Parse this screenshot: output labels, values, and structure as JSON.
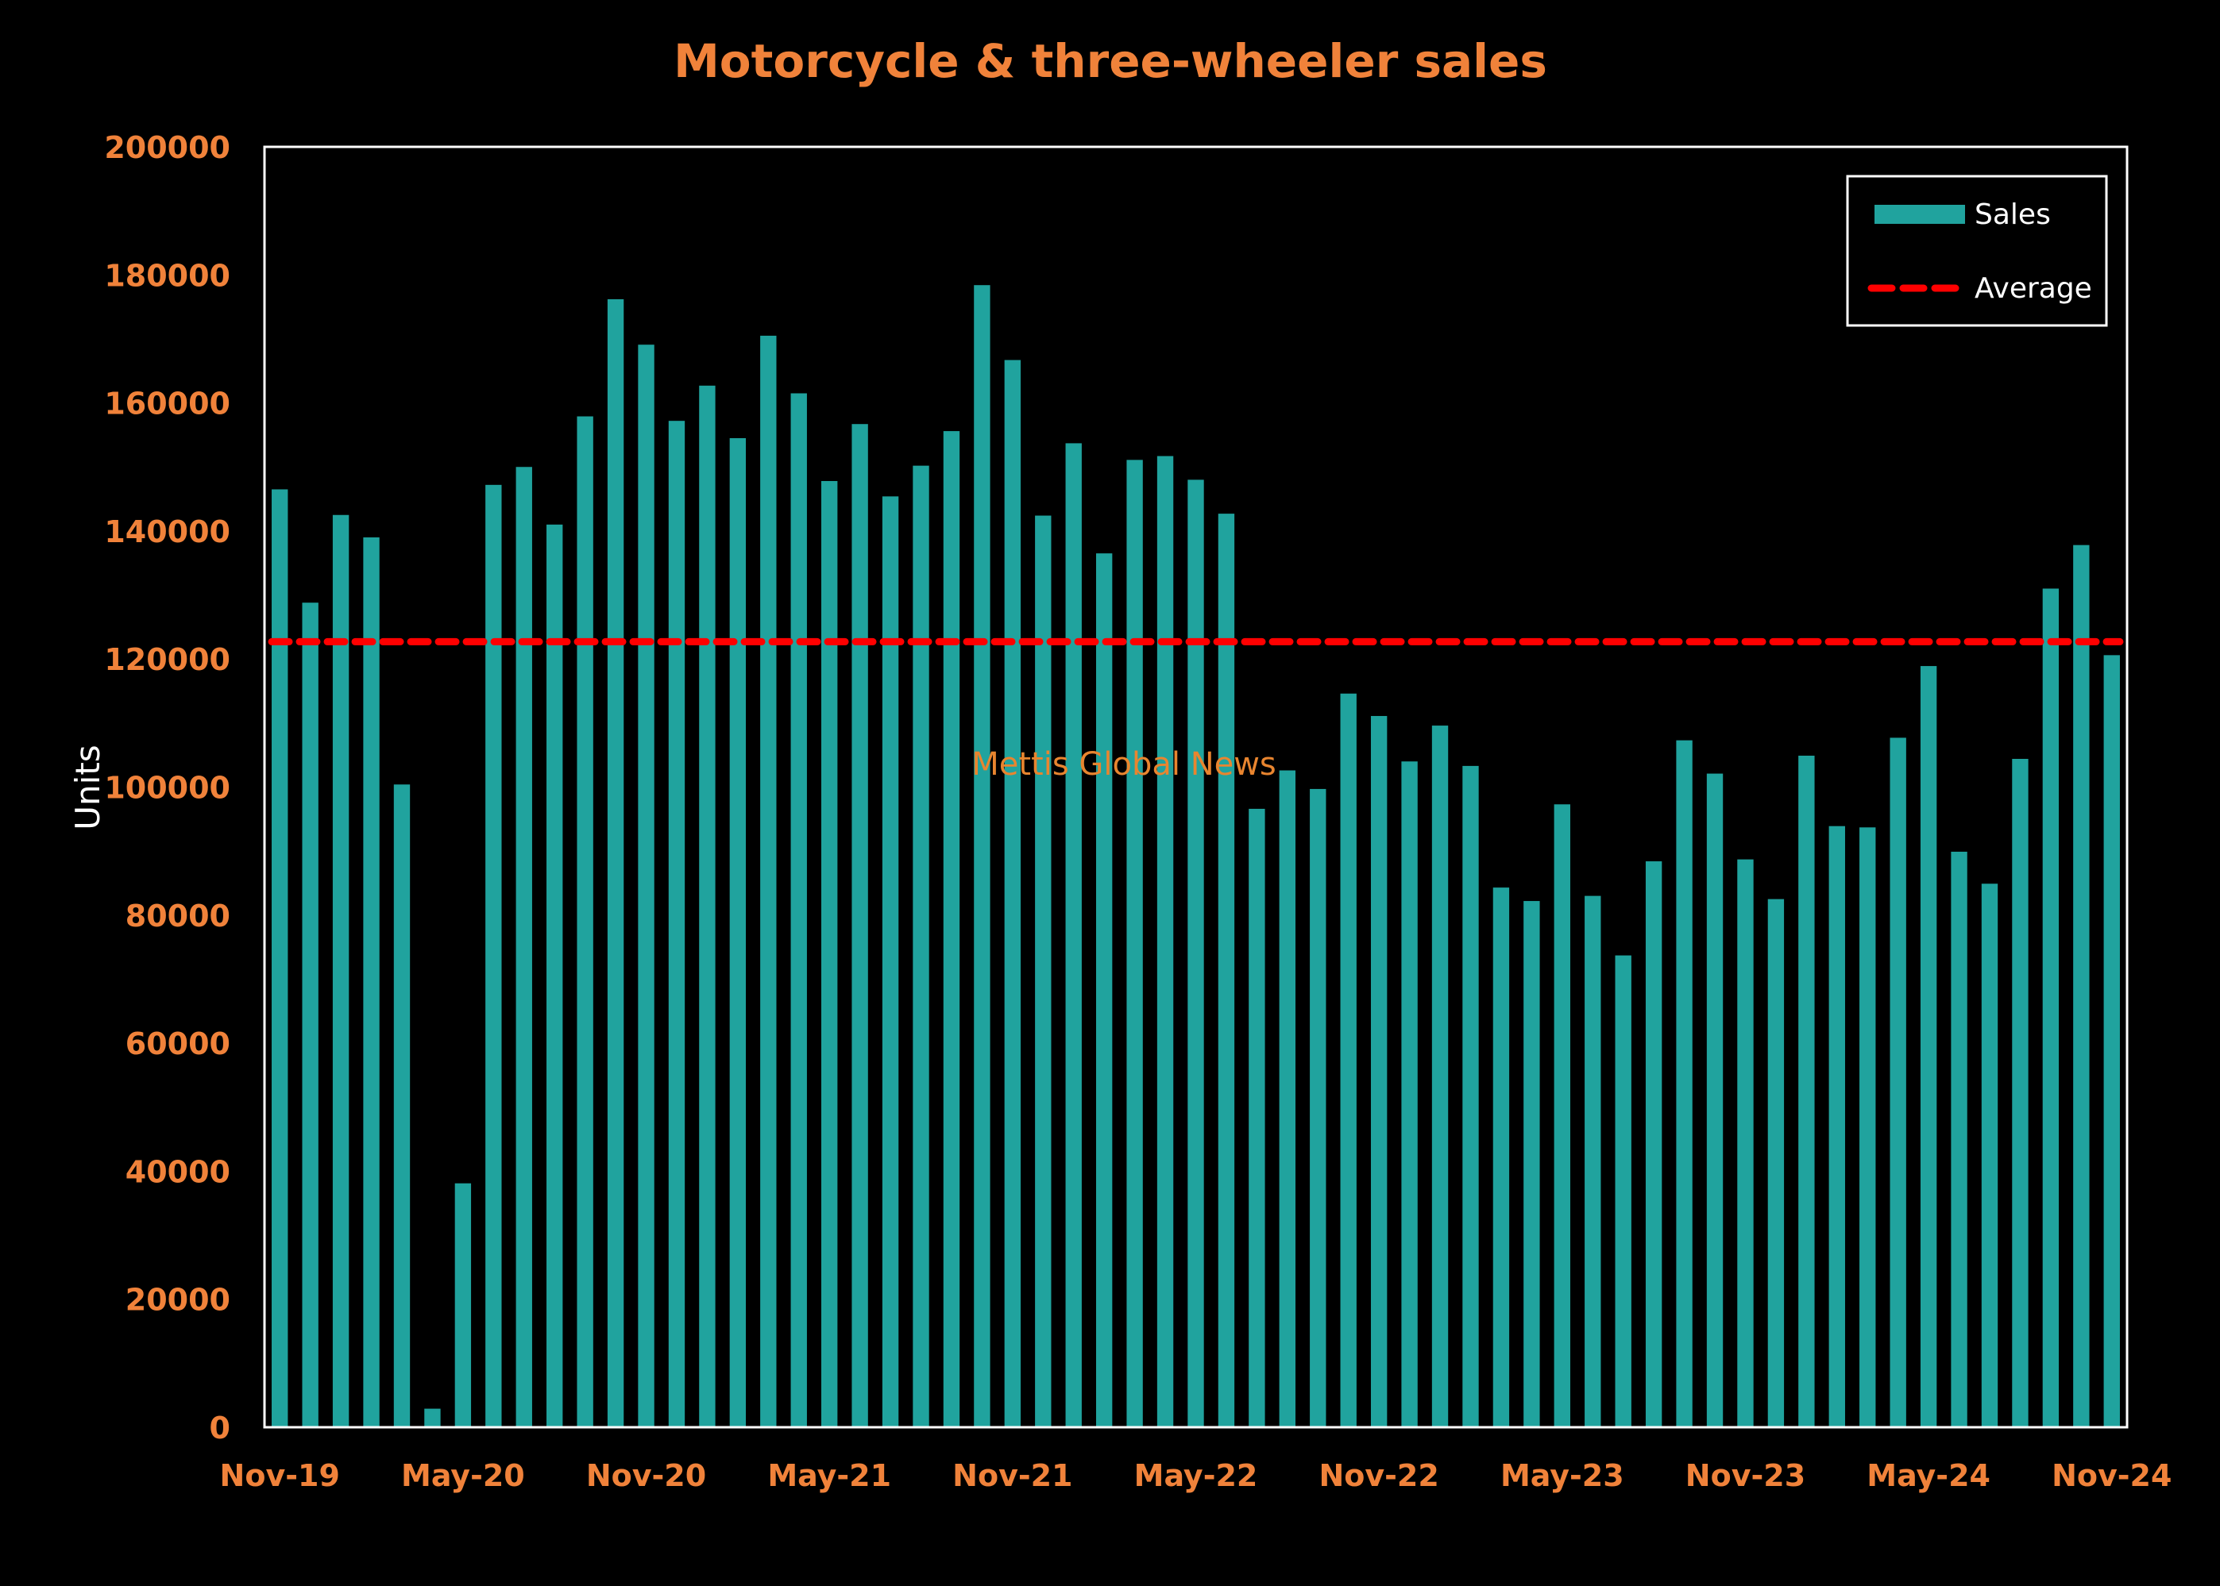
{
  "chart_data": {
    "type": "bar",
    "title": "Motorcycle & three-wheeler sales",
    "ylabel": "Units",
    "xlabel": "",
    "ylim": [
      0,
      200000
    ],
    "y_ticks": [
      0,
      20000,
      40000,
      60000,
      80000,
      100000,
      120000,
      140000,
      160000,
      180000,
      200000
    ],
    "x_tick_labels": [
      "Nov-19",
      "May-20",
      "Nov-20",
      "May-21",
      "Nov-21",
      "May-22",
      "Nov-22",
      "May-23",
      "Nov-23",
      "May-24",
      "Nov-24"
    ],
    "categories": [
      "Nov-19",
      "Dec-19",
      "Jan-20",
      "Feb-20",
      "Mar-20",
      "Apr-20",
      "May-20",
      "Jun-20",
      "Jul-20",
      "Aug-20",
      "Sep-20",
      "Oct-20",
      "Nov-20",
      "Dec-20",
      "Jan-21",
      "Feb-21",
      "Mar-21",
      "Apr-21",
      "May-21",
      "Jun-21",
      "Jul-21",
      "Aug-21",
      "Sep-21",
      "Oct-21",
      "Nov-21",
      "Dec-21",
      "Jan-22",
      "Feb-22",
      "Mar-22",
      "Apr-22",
      "May-22",
      "Jun-22",
      "Jul-22",
      "Aug-22",
      "Sep-22",
      "Oct-22",
      "Nov-22",
      "Dec-22",
      "Jan-23",
      "Feb-23",
      "Mar-23",
      "Apr-23",
      "May-23",
      "Jun-23",
      "Jul-23",
      "Aug-23",
      "Sep-23",
      "Oct-23",
      "Nov-23",
      "Dec-23",
      "Jan-24",
      "Feb-24",
      "Mar-24",
      "Apr-24",
      "May-24",
      "Jun-24",
      "Jul-24",
      "Aug-24",
      "Sep-24",
      "Oct-24",
      "Nov-24"
    ],
    "series": [
      {
        "name": "Sales",
        "type": "bar",
        "color": "#20A39E",
        "values": [
          146500,
          128800,
          142500,
          139000,
          100400,
          2900,
          38100,
          147200,
          150000,
          141000,
          157900,
          176200,
          169100,
          157200,
          162700,
          154500,
          170500,
          161500,
          147800,
          156700,
          145400,
          150200,
          155600,
          178400,
          166700,
          142400,
          153700,
          136500,
          151100,
          151700,
          148000,
          142700,
          96600,
          102600,
          99700,
          114600,
          111100,
          104000,
          109600,
          103300,
          84300,
          82200,
          97300,
          83000,
          73700,
          88400,
          107300,
          102100,
          88700,
          82500,
          104900,
          93900,
          93700,
          107700,
          118900,
          89900,
          84900,
          104400,
          131000,
          137800,
          120600
        ]
      },
      {
        "name": "Average",
        "type": "line",
        "style": "dashed",
        "color": "#FF0000",
        "value": 122700
      }
    ],
    "legend": {
      "position": "top-right",
      "entries": [
        "Sales",
        "Average"
      ]
    },
    "watermark": "Mettis Global News",
    "grid": false,
    "colors": {
      "background": "#000000",
      "plot_border": "#FFFFFF",
      "title": "#F0823A",
      "tick_labels": "#F0823A",
      "axis_title": "#FFFFFF",
      "watermark": "#E8852F",
      "legend_text": "#FFFFFF"
    }
  }
}
